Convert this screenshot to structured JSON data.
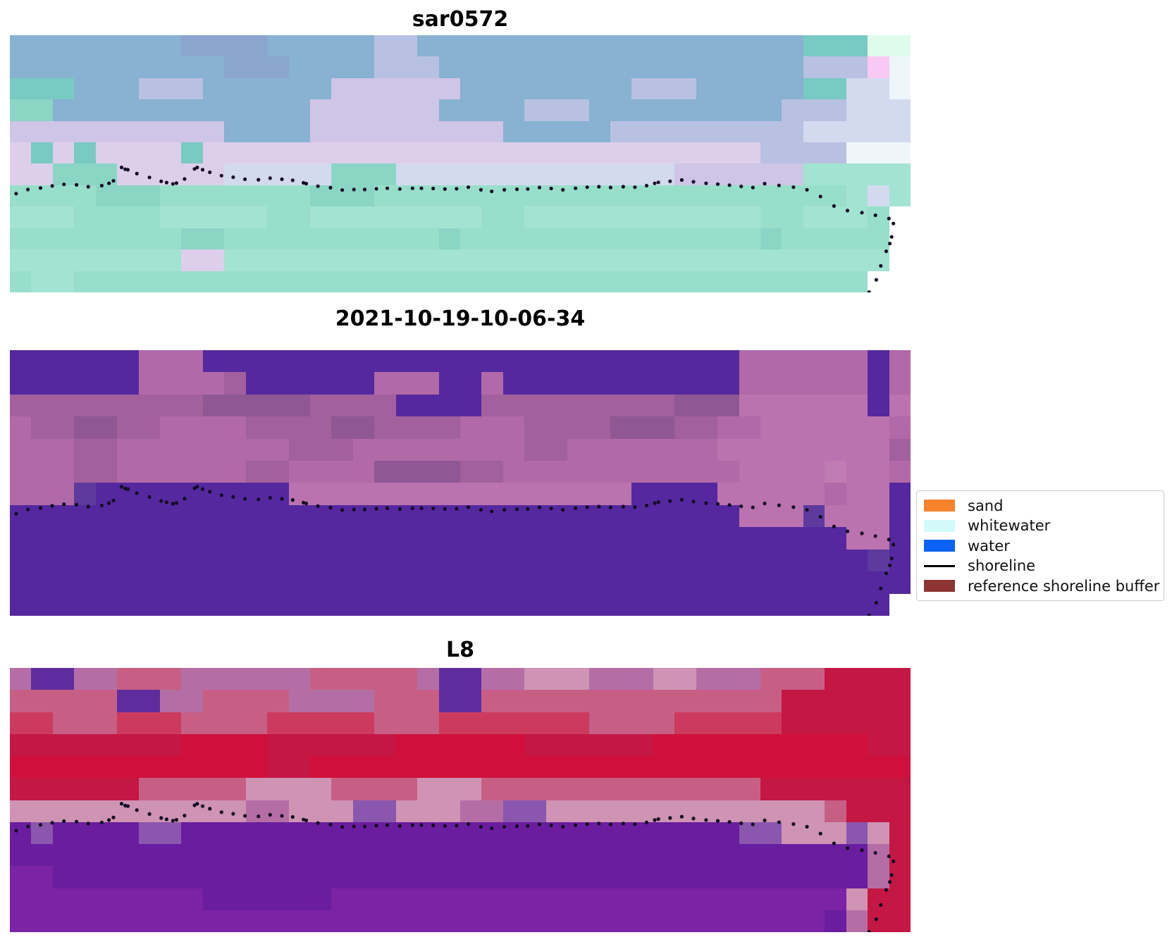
{
  "legend": {
    "items": [
      {
        "label": "sand",
        "swatch": "#F9822D",
        "type": "patch"
      },
      {
        "label": "whitewater",
        "swatch": "#D2FAFA",
        "type": "patch"
      },
      {
        "label": "water",
        "swatch": "#0C62F7",
        "type": "patch"
      },
      {
        "label": "shoreline",
        "swatch": "#000000",
        "type": "line"
      },
      {
        "label": "reference shoreline buffer",
        "swatch": "#8E3434",
        "type": "patch"
      }
    ]
  },
  "chart_data": {
    "type": "heatmap",
    "description": "Three co-registered coastal image panels (SAR image, classified image, Landsat-8 image) sharing one dotted shoreline overlay",
    "panels": [
      {
        "title": "sar0572",
        "palette": {
          "B": "#88b1d2",
          "D": "#8aa6cf",
          "C": "#7fbdd2",
          "L": "#b9c1e2",
          "P": "#cfc5e6",
          "Q": "#ddcfec",
          "E": "#d3daf0",
          "T": "#79cac2",
          "t": "#8bd5c5",
          "A": "#98dfcb",
          "a": "#a3e3d2",
          "M": "#f9c8f4",
          "G": "#dffbec",
          "w": "#eef6fa",
          "W": "#ffffff"
        },
        "grid": [
          "BBBBBBBBDDDDBBBBBLLBBBBBBBBBBBBBBBBBBTTTGG",
          "BBBBBBBBBBDDDBBBBLLLBBBBBBBBBBBBBBBBBLLLMw",
          "TTTBBBLLLBBBBBBPPPPPPBBBBBBBBLLLBBBBBTTEEw",
          "ttBBBBBBBBBBBBPPPPPPBBBBLLLBBBBBBBBBLLLEEE",
          "PPPPPPPPPPBBBBPPPPPPPPPBBBBBLLLLLLLLLEEEEE",
          "QTQTQQQQTQQQQQQQQQQQQQQQQQQQQQQQQQQLLLLwww",
          "QQtttQQQQQEEEEEtttEEEEEEEEEEEEEPPPPPPaaaaa",
          "AAAAtttAAAAAAAtttAAAAAAAAAAAAAAAAAAAAAAaEa",
          "aaaAAAAaaaaaAAaaaaaaaaAAaaaaaaaaaaaAAaaaAW",
          "AAAAAAAAttAAAAAAAAAAtAAAAAAAAAAAAAAtAAAAAW",
          "aaaaaaaaQQaaaaaaaaaaaaaaaaaaaaaaaaaaaaaaaW",
          "AaaAAAAAAAAAAAAAAAAAAAAAAAAAAAAAAAAAAAAAWW"
        ]
      },
      {
        "title": "2021-10-19-10-06-34",
        "palette": {
          "I": "#55289f",
          "J": "#5e3a9e",
          "K": "#8f5894",
          "m": "#a2609c",
          "N": "#b169a7",
          "n": "#bb73af",
          "R": "#c07cb2",
          "W": "#ffffff"
        },
        "grid": [
          "IIIIIINNNIIIIIIIIIIIIIIIIIIIIIIIIINNNNNNIN",
          "IIIIIINNNNmIIIIIINNNIINIIIIIIIIIIINNNNNNIN",
          "mmmmmmmmmKKKKKmmmmIIIImmmmmmmmmKKKnnnnnnIn",
          "NmmKKmmNNNNmmmmKKmmmmNNNmmmmKKKmmNNnnnnnn",
          "NNNNmmNNNNNNNNmmmNNNNNNNNmmNNNNNNNnnnnnnnn",
          "mNNNmmNNNNNNmmNNNNKKKKmmNNNNNNNNNNNnnnnRnn",
          "NNNNJIIIIIIIIInnnnnnnnnnnnnnnnIIIInnnnnNnn",
          "IIIIIIIIIIIIIIIIIIIIIIIIIIIIIIIIIIInnnJnnn",
          "IIIIIIIIIIIIIIIIIIIIIIIIIIIIIIIIIIIIIIIInn",
          "IIIIIIIIIIIIIIIIIIIIIIIIIIIIIIIIIIIIIIIIIJ",
          "IIIIIIIIIIIIIIIIIIIIIIIIIIIIIIIIIIIIIIIIII",
          "IIIIIIIIIIIIIIIIIIIIIIIIIIIIIIIIIIIIIIIIII"
        ]
      },
      {
        "title": "L8",
        "palette": {
          "V": "#6a1d9e",
          "v": "#7b22a5",
          "U": "#5f2c9e",
          "u": "#8a56ae",
          "r": "#c41744",
          "s": "#d0103c",
          "o": "#cc3a5e",
          "x": "#c75f85",
          "y": "#cf93b4",
          "z": "#b56ea5",
          "W": "#ffffff"
        },
        "grid": [
          "zUUzzxxxzzzzzzxxxxxzUUzzyyyzzzyyzzzxxxrrrr",
          "xxxxxUUzzxxxxzzzzxxxUUxxxxxxxxxxxxxxrrrrrr",
          "ooxxxoooxxxxoooooxxxoooooooxxxxooooorrrrrr",
          "rrrrrrrrssssrrrrrrssssssrrrrrrssssssssssrr",
          "ssssssssssssrrssssssssssssssssssssssssssss",
          "rrrrrrxxxxxyyyyxxxxyyyxxxxxxxxxxxxxrrrrrrr",
          "yyyyyyyyyyyzzyyyuuyyyzzuuyyyyyyyyyyyyyxrrr",
          "VuVVVVuuVVVVVVVVVVVVVVVVVVVVVVVVVVuuyyyuyr",
          "VVVVVVVVVVVVVVVVVVVVVVVVVVVVVVVVVVVVVVVVzr",
          "vvVVVVVVVVVVVVVVVVVVVVVVVVVVVVVVVVVVVVVVzr",
          "vvvvvvvvvVVVVVVvvvvvvvvvvvvvvvvvvvvvvvvyrr",
          "vvvvvvvvvvvvvvvvvvvvvvvvvvvvvvvvvvvvvvVzrr"
        ]
      }
    ],
    "shoreline": {
      "label": "shoreline",
      "color": "#150d24",
      "points": [
        [
          0.007,
          0.616
        ],
        [
          0.02,
          0.6
        ],
        [
          0.034,
          0.594
        ],
        [
          0.047,
          0.586
        ],
        [
          0.06,
          0.58
        ],
        [
          0.074,
          0.582
        ],
        [
          0.087,
          0.589
        ],
        [
          0.102,
          0.585
        ],
        [
          0.11,
          0.576
        ],
        [
          0.115,
          0.566
        ],
        [
          0.124,
          0.514
        ],
        [
          0.128,
          0.521
        ],
        [
          0.131,
          0.523
        ],
        [
          0.141,
          0.538
        ],
        [
          0.155,
          0.553
        ],
        [
          0.168,
          0.568
        ],
        [
          0.174,
          0.573
        ],
        [
          0.181,
          0.578
        ],
        [
          0.185,
          0.575
        ],
        [
          0.194,
          0.559
        ],
        [
          0.205,
          0.52
        ],
        [
          0.208,
          0.514
        ],
        [
          0.214,
          0.523
        ],
        [
          0.222,
          0.533
        ],
        [
          0.235,
          0.546
        ],
        [
          0.248,
          0.552
        ],
        [
          0.261,
          0.56
        ],
        [
          0.276,
          0.562
        ],
        [
          0.289,
          0.556
        ],
        [
          0.302,
          0.56
        ],
        [
          0.314,
          0.564
        ],
        [
          0.326,
          0.574
        ],
        [
          0.329,
          0.577
        ],
        [
          0.342,
          0.587
        ],
        [
          0.356,
          0.593
        ],
        [
          0.369,
          0.602
        ],
        [
          0.382,
          0.6
        ],
        [
          0.394,
          0.6
        ],
        [
          0.407,
          0.597
        ],
        [
          0.419,
          0.595
        ],
        [
          0.433,
          0.598
        ],
        [
          0.447,
          0.595
        ],
        [
          0.457,
          0.595
        ],
        [
          0.47,
          0.596
        ],
        [
          0.483,
          0.598
        ],
        [
          0.496,
          0.597
        ],
        [
          0.509,
          0.591
        ],
        [
          0.523,
          0.601
        ],
        [
          0.535,
          0.607
        ],
        [
          0.549,
          0.601
        ],
        [
          0.563,
          0.599
        ],
        [
          0.575,
          0.598
        ],
        [
          0.588,
          0.592
        ],
        [
          0.601,
          0.596
        ],
        [
          0.614,
          0.601
        ],
        [
          0.628,
          0.595
        ],
        [
          0.641,
          0.591
        ],
        [
          0.654,
          0.589
        ],
        [
          0.667,
          0.592
        ],
        [
          0.681,
          0.589
        ],
        [
          0.694,
          0.591
        ],
        [
          0.707,
          0.585
        ],
        [
          0.716,
          0.576
        ],
        [
          0.72,
          0.572
        ],
        [
          0.733,
          0.568
        ],
        [
          0.746,
          0.563
        ],
        [
          0.759,
          0.57
        ],
        [
          0.773,
          0.576
        ],
        [
          0.786,
          0.579
        ],
        [
          0.799,
          0.583
        ],
        [
          0.812,
          0.588
        ],
        [
          0.825,
          0.592
        ],
        [
          0.838,
          0.577
        ],
        [
          0.854,
          0.584
        ],
        [
          0.87,
          0.591
        ],
        [
          0.885,
          0.601
        ],
        [
          0.9,
          0.627
        ],
        [
          0.915,
          0.664
        ],
        [
          0.93,
          0.682
        ],
        [
          0.946,
          0.69
        ],
        [
          0.961,
          0.7
        ],
        [
          0.976,
          0.713
        ],
        [
          0.981,
          0.732
        ],
        [
          0.979,
          0.784
        ],
        [
          0.977,
          0.81
        ],
        [
          0.973,
          0.84
        ],
        [
          0.967,
          0.897
        ],
        [
          0.962,
          0.951
        ],
        [
          0.954,
          0.999
        ]
      ]
    }
  }
}
